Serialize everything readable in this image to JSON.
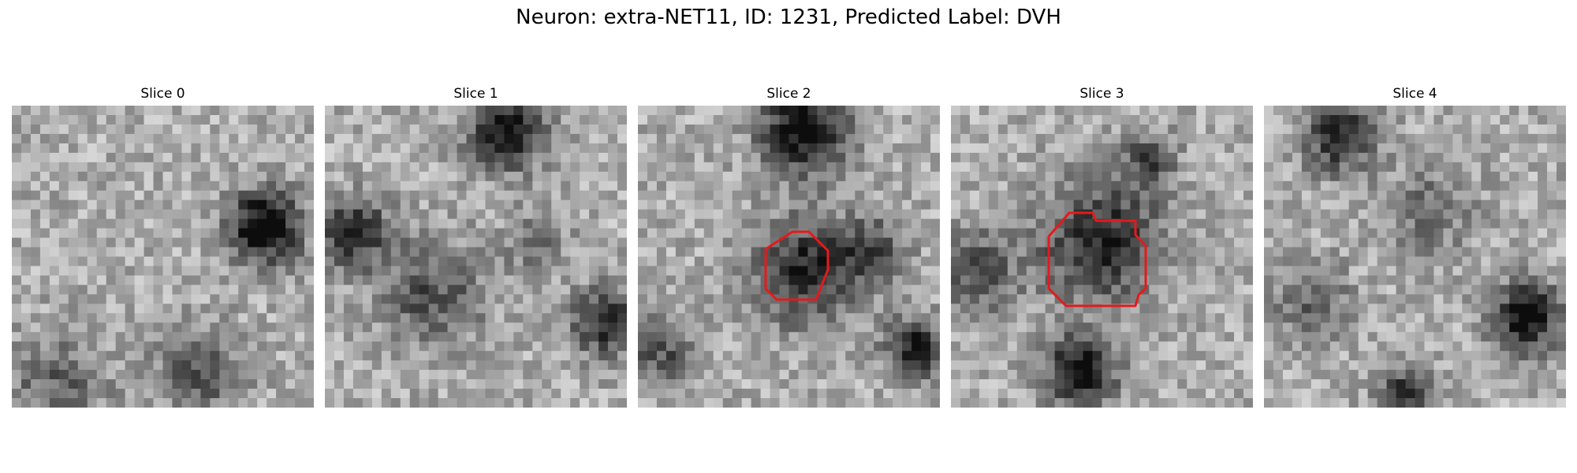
{
  "figure": {
    "title": "Neuron: extra-NET11, ID: 1231, Predicted Label: DVH"
  },
  "slices": [
    {
      "label": "Slice 0",
      "has_outline": false
    },
    {
      "label": "Slice 1",
      "has_outline": false
    },
    {
      "label": "Slice 2",
      "has_outline": true
    },
    {
      "label": "Slice 3",
      "has_outline": true
    },
    {
      "label": "Slice 4",
      "has_outline": false
    }
  ],
  "colors": {
    "colormap": "gray",
    "outline": "#e41a1c",
    "background": "#ffffff"
  }
}
